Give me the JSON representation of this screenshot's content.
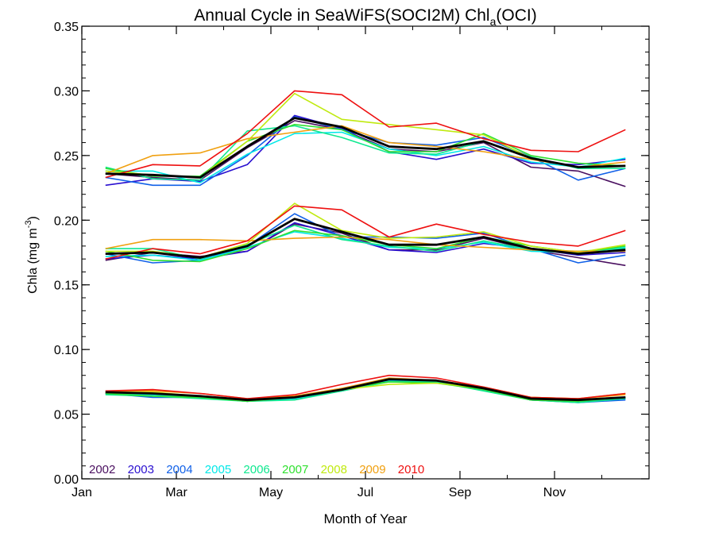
{
  "chart_data": {
    "type": "line",
    "title_main": "Annual Cycle in SeaWiFS(SOCI2M) Chl",
    "title_sub": "a",
    "title_end": "(OCI)",
    "xlabel": "Month of Year",
    "ylabel_main": "Chla (mg m",
    "ylabel_sup": "-3",
    "ylabel_end": ")",
    "xlim": [
      1,
      13
    ],
    "ylim": [
      0,
      0.35
    ],
    "x_ticks": [
      {
        "value": 1,
        "label": "Jan"
      },
      {
        "value": 3,
        "label": "Mar"
      },
      {
        "value": 5,
        "label": "May"
      },
      {
        "value": 7,
        "label": "Jul"
      },
      {
        "value": 9,
        "label": "Sep"
      },
      {
        "value": 11,
        "label": "Nov"
      }
    ],
    "y_ticks": [
      {
        "value": 0.0,
        "label": "0.00"
      },
      {
        "value": 0.05,
        "label": "0.05"
      },
      {
        "value": 0.1,
        "label": "0.10"
      },
      {
        "value": 0.15,
        "label": "0.15"
      },
      {
        "value": 0.2,
        "label": "0.20"
      },
      {
        "value": 0.25,
        "label": "0.25"
      },
      {
        "value": 0.3,
        "label": "0.30"
      },
      {
        "value": 0.35,
        "label": "0.35"
      }
    ],
    "x": [
      1.5,
      2.5,
      3.5,
      4.5,
      5.5,
      6.5,
      7.5,
      8.5,
      9.5,
      10.5,
      11.5,
      12.5
    ],
    "legend_position": "bottom-left",
    "series": [
      {
        "name": "2002",
        "color": "#4a1060",
        "upper": [
          0.236,
          0.233,
          0.231,
          0.256,
          0.277,
          0.27,
          0.255,
          0.253,
          0.26,
          0.241,
          0.238,
          0.226
        ],
        "middle": [
          0.169,
          0.175,
          0.172,
          0.176,
          0.197,
          0.19,
          0.177,
          0.177,
          0.186,
          0.177,
          0.171,
          0.165
        ],
        "lower": [
          0.066,
          0.066,
          0.064,
          0.061,
          0.063,
          0.069,
          0.077,
          0.075,
          0.069,
          0.061,
          0.06,
          0.063
        ]
      },
      {
        "name": "2003",
        "color": "#2a10d0",
        "upper": [
          0.227,
          0.232,
          0.23,
          0.243,
          0.281,
          0.271,
          0.253,
          0.247,
          0.255,
          0.244,
          0.243,
          0.247
        ],
        "middle": [
          0.17,
          0.173,
          0.17,
          0.176,
          0.198,
          0.188,
          0.177,
          0.175,
          0.182,
          0.178,
          0.173,
          0.175
        ],
        "lower": [
          0.066,
          0.065,
          0.063,
          0.06,
          0.063,
          0.069,
          0.076,
          0.075,
          0.069,
          0.061,
          0.06,
          0.062
        ]
      },
      {
        "name": "2004",
        "color": "#1060e8",
        "upper": [
          0.233,
          0.227,
          0.227,
          0.25,
          0.28,
          0.27,
          0.26,
          0.258,
          0.264,
          0.249,
          0.231,
          0.24
        ],
        "middle": [
          0.174,
          0.167,
          0.169,
          0.18,
          0.205,
          0.187,
          0.187,
          0.186,
          0.19,
          0.178,
          0.167,
          0.173
        ],
        "lower": [
          0.066,
          0.063,
          0.063,
          0.06,
          0.062,
          0.068,
          0.076,
          0.075,
          0.069,
          0.061,
          0.059,
          0.061
        ]
      },
      {
        "name": "2005",
        "color": "#00e8e8",
        "upper": [
          0.238,
          0.238,
          0.229,
          0.251,
          0.267,
          0.268,
          0.255,
          0.25,
          0.257,
          0.245,
          0.241,
          0.248
        ],
        "middle": [
          0.172,
          0.173,
          0.169,
          0.179,
          0.191,
          0.186,
          0.179,
          0.178,
          0.183,
          0.176,
          0.175,
          0.179
        ],
        "lower": [
          0.066,
          0.065,
          0.063,
          0.06,
          0.062,
          0.069,
          0.076,
          0.075,
          0.069,
          0.061,
          0.06,
          0.062
        ]
      },
      {
        "name": "2006",
        "color": "#10e890",
        "upper": [
          0.241,
          0.232,
          0.231,
          0.269,
          0.273,
          0.264,
          0.252,
          0.251,
          0.261,
          0.249,
          0.24,
          0.24
        ],
        "middle": [
          0.178,
          0.178,
          0.17,
          0.181,
          0.196,
          0.185,
          0.18,
          0.176,
          0.184,
          0.177,
          0.176,
          0.178
        ],
        "lower": [
          0.065,
          0.064,
          0.062,
          0.06,
          0.061,
          0.068,
          0.075,
          0.075,
          0.068,
          0.061,
          0.059,
          0.062
        ]
      },
      {
        "name": "2007",
        "color": "#30e030",
        "upper": [
          0.24,
          0.234,
          0.234,
          0.261,
          0.274,
          0.27,
          0.253,
          0.253,
          0.267,
          0.25,
          0.244,
          0.242
        ],
        "middle": [
          0.176,
          0.169,
          0.168,
          0.178,
          0.192,
          0.188,
          0.181,
          0.178,
          0.187,
          0.18,
          0.175,
          0.18
        ],
        "lower": [
          0.066,
          0.064,
          0.063,
          0.06,
          0.063,
          0.07,
          0.075,
          0.074,
          0.069,
          0.061,
          0.06,
          0.063
        ]
      },
      {
        "name": "2008",
        "color": "#c0ea10",
        "upper": [
          0.238,
          0.235,
          0.233,
          0.261,
          0.298,
          0.278,
          0.274,
          0.27,
          0.266,
          0.248,
          0.241,
          0.242
        ],
        "middle": [
          0.176,
          0.176,
          0.171,
          0.182,
          0.213,
          0.192,
          0.186,
          0.187,
          0.191,
          0.18,
          0.175,
          0.181
        ],
        "lower": [
          0.067,
          0.067,
          0.064,
          0.061,
          0.064,
          0.069,
          0.073,
          0.074,
          0.07,
          0.063,
          0.062,
          0.066
        ]
      },
      {
        "name": "2009",
        "color": "#f0a010",
        "upper": [
          0.236,
          0.25,
          0.252,
          0.263,
          0.268,
          0.273,
          0.26,
          0.257,
          0.253,
          0.247,
          0.241,
          0.245
        ],
        "middle": [
          0.178,
          0.185,
          0.185,
          0.184,
          0.186,
          0.187,
          0.185,
          0.181,
          0.179,
          0.177,
          0.176,
          0.176
        ],
        "lower": [
          0.068,
          0.068,
          0.066,
          0.062,
          0.064,
          0.07,
          0.078,
          0.076,
          0.071,
          0.063,
          0.062,
          0.065
        ]
      },
      {
        "name": "2010",
        "color": "#ee1010",
        "upper": [
          0.233,
          0.243,
          0.242,
          0.267,
          0.3,
          0.297,
          0.272,
          0.275,
          0.263,
          0.254,
          0.253,
          0.27
        ],
        "middle": [
          0.17,
          0.178,
          0.174,
          0.184,
          0.211,
          0.208,
          0.187,
          0.197,
          0.189,
          0.183,
          0.18,
          0.192
        ],
        "lower": [
          0.068,
          0.069,
          0.066,
          0.062,
          0.065,
          0.073,
          0.08,
          0.078,
          0.071,
          0.063,
          0.062,
          0.066
        ]
      },
      {
        "color": "#000000",
        "mean": true,
        "upper": [
          0.236,
          0.235,
          0.233,
          0.257,
          0.279,
          0.272,
          0.257,
          0.255,
          0.261,
          0.248,
          0.241,
          0.242
        ],
        "middle": [
          0.174,
          0.175,
          0.171,
          0.18,
          0.201,
          0.191,
          0.181,
          0.181,
          0.187,
          0.178,
          0.174,
          0.177
        ],
        "lower": [
          0.067,
          0.066,
          0.064,
          0.061,
          0.063,
          0.069,
          0.077,
          0.076,
          0.07,
          0.062,
          0.061,
          0.063
        ]
      }
    ]
  }
}
